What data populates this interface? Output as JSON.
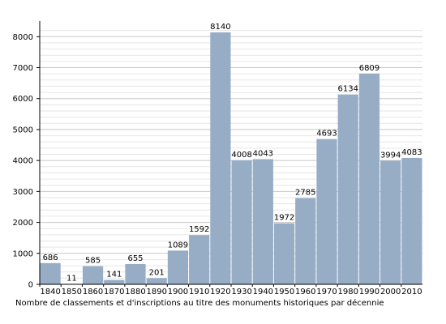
{
  "colors": {
    "bar": "#97adc6",
    "grid": "#c8c8c8",
    "axis": "#000000"
  },
  "chart_data": {
    "type": "bar",
    "title": "",
    "xlabel": "Nombre de classements et d'inscriptions au titre des monuments historiques par décennie",
    "ylabel": "",
    "categories": [
      "1840",
      "1850",
      "1860",
      "1870",
      "1880",
      "1890",
      "1900",
      "1910",
      "1920",
      "1930",
      "1940",
      "1950",
      "1960",
      "1970",
      "1980",
      "1990",
      "2000",
      "2010"
    ],
    "values": [
      686,
      11,
      585,
      141,
      655,
      201,
      1089,
      1592,
      8140,
      4008,
      4043,
      1972,
      2785,
      4693,
      6134,
      6809,
      3994,
      4083
    ],
    "yticks": [
      0,
      1000,
      2000,
      3000,
      4000,
      5000,
      6000,
      7000,
      8000
    ],
    "ylim": [
      0,
      8400
    ],
    "grid": true,
    "minor_grid": true,
    "legend": "none"
  }
}
